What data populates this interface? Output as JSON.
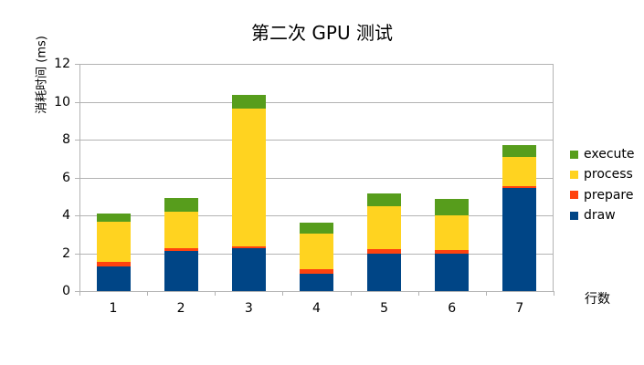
{
  "chart_data": {
    "type": "bar",
    "stacked": true,
    "title": "第二次 GPU 测试",
    "xlabel": "行数",
    "ylabel": "消耗时间 (ms)",
    "ylim": [
      0,
      12
    ],
    "yticks": [
      0,
      2,
      4,
      6,
      8,
      10,
      12
    ],
    "grid": true,
    "legend_position": "right",
    "categories": [
      "1",
      "2",
      "3",
      "4",
      "5",
      "6",
      "7"
    ],
    "series": [
      {
        "name": "draw",
        "color": "#004586",
        "values": [
          1.3,
          2.12,
          2.25,
          0.93,
          1.98,
          1.99,
          5.43
        ]
      },
      {
        "name": "prepare",
        "color": "#ff420e",
        "values": [
          0.26,
          0.16,
          0.1,
          0.23,
          0.25,
          0.19,
          0.13
        ]
      },
      {
        "name": "process",
        "color": "#ffd320",
        "values": [
          2.09,
          1.92,
          7.3,
          1.88,
          2.27,
          1.83,
          1.54
        ]
      },
      {
        "name": "execute",
        "color": "#579d1c",
        "values": [
          0.45,
          0.73,
          0.71,
          0.59,
          0.64,
          0.87,
          0.61
        ]
      }
    ],
    "totals": [
      4.1,
      4.93,
      10.36,
      3.63,
      5.14,
      4.88,
      7.71
    ]
  },
  "legend": {
    "items": [
      {
        "label": "execute",
        "color": "#579d1c"
      },
      {
        "label": "process",
        "color": "#ffd320"
      },
      {
        "label": "prepare",
        "color": "#ff420e"
      },
      {
        "label": "draw",
        "color": "#004586"
      }
    ]
  }
}
